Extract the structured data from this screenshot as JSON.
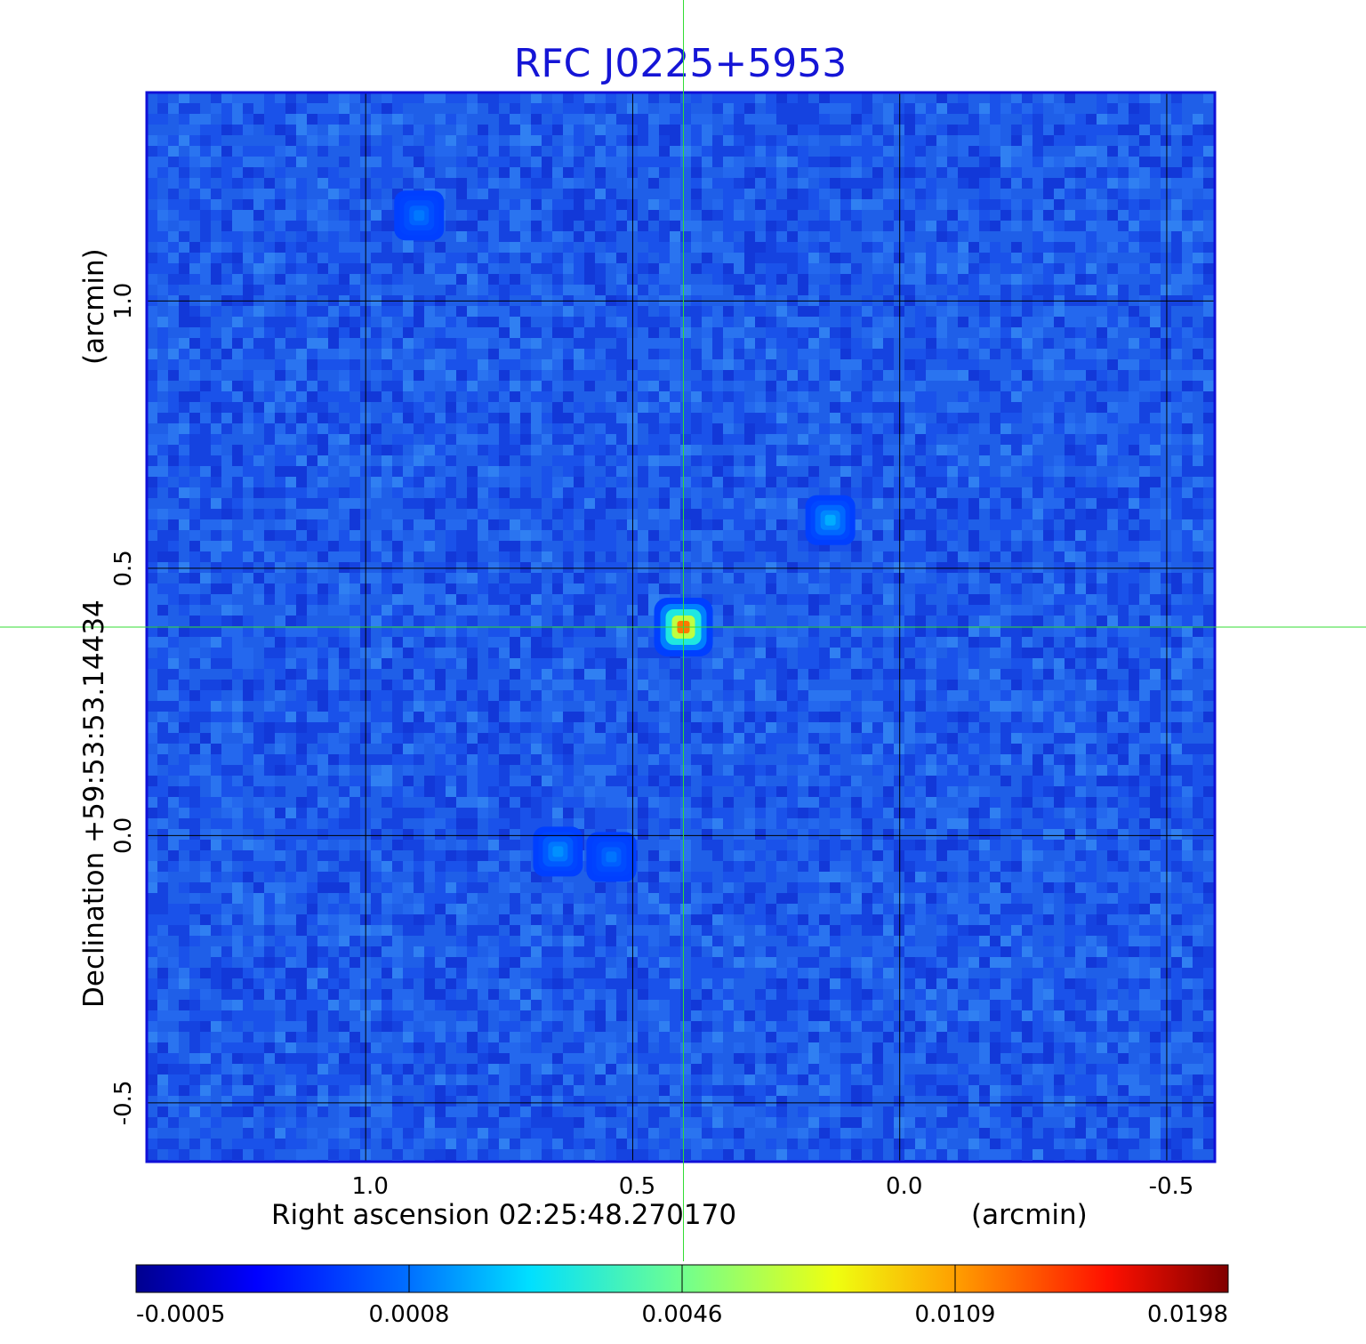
{
  "chart_data": {
    "type": "heatmap",
    "title": "RFC J0225+5953",
    "xlabel": "Right ascension  02:25:48.270170",
    "xlabel_unit": "(arcmin)",
    "ylabel": "Declination  +59:53:53.14434",
    "ylabel_unit": "(arcmin)",
    "x_ticks": [
      "1.0",
      "0.5",
      "0.0",
      "-0.5"
    ],
    "x_tick_values": [
      1.0,
      0.5,
      0.0,
      -0.5
    ],
    "y_ticks": [
      "1.0",
      "0.5",
      "0.0",
      "-0.5"
    ],
    "y_tick_values": [
      1.0,
      0.5,
      0.0,
      -0.5
    ],
    "xlim": [
      1.41,
      -0.59
    ],
    "ylim": [
      -0.61,
      1.39
    ],
    "x_direction": "decreasing",
    "grid": true,
    "crosshair": {
      "x": 0.405,
      "y": 0.39,
      "color": "#33dd33"
    },
    "colormap": "jet",
    "colorbar": {
      "ticks": [
        "-0.0005",
        "0.0008",
        "0.0046",
        "0.0109",
        "0.0198"
      ],
      "min": -0.0005,
      "max": 0.0198,
      "placement": "bottom"
    },
    "sources": [
      {
        "x": 0.405,
        "y": 0.39,
        "peak": 0.0198
      },
      {
        "x": 0.13,
        "y": 0.59,
        "peak": 0.0025
      },
      {
        "x": 0.64,
        "y": -0.03,
        "peak": 0.0018
      },
      {
        "x": 0.54,
        "y": -0.04,
        "peak": 0.0011
      },
      {
        "x": 0.9,
        "y": 1.16,
        "peak": 0.0012
      }
    ]
  }
}
